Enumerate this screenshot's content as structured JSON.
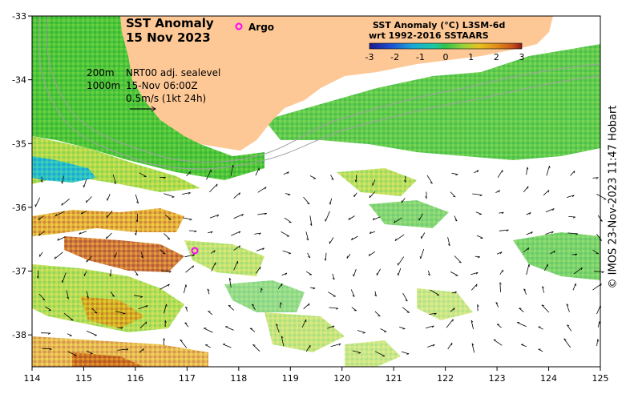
{
  "title": "SST Anomaly",
  "date": "15 Nov 2023",
  "argo_label": "Argo",
  "colorbar": {
    "title_line1": "SST Anomaly (°C) L3SM-6d",
    "title_line2": "wrt 1992-2016 SSTAARS",
    "ticks": [
      "-3",
      "-2",
      "-1",
      "0",
      "1",
      "2",
      "3"
    ],
    "colors": [
      "#1a1a8c",
      "#1f4fd1",
      "#1aa6d8",
      "#19c9a8",
      "#33c24a",
      "#9ad23a",
      "#e8c21f",
      "#e08a1a",
      "#c8521a",
      "#8c1a1a"
    ]
  },
  "annotations": {
    "depth_200": "200m",
    "depth_1000": "1000m",
    "sealevel_label": "NRT00 adj. sealevel",
    "sealevel_time": "15-Nov 06:00Z",
    "vector_scale": "0.5m/s (1kt 24h)"
  },
  "axes": {
    "x_ticks": [
      "114",
      "115",
      "116",
      "117",
      "118",
      "119",
      "120",
      "121",
      "122",
      "123",
      "124",
      "125"
    ],
    "y_ticks": [
      "-33",
      "-34",
      "-35",
      "-36",
      "-37",
      "-38"
    ],
    "lon_range": [
      114,
      125
    ],
    "lat_range": [
      -38.5,
      -33
    ]
  },
  "credit": "© IMOS 23-Nov-2023 11:47 Hobart",
  "colors": {
    "land": "#fdc896",
    "argo": "#ff00ff",
    "contour": "#a0a0a0"
  }
}
